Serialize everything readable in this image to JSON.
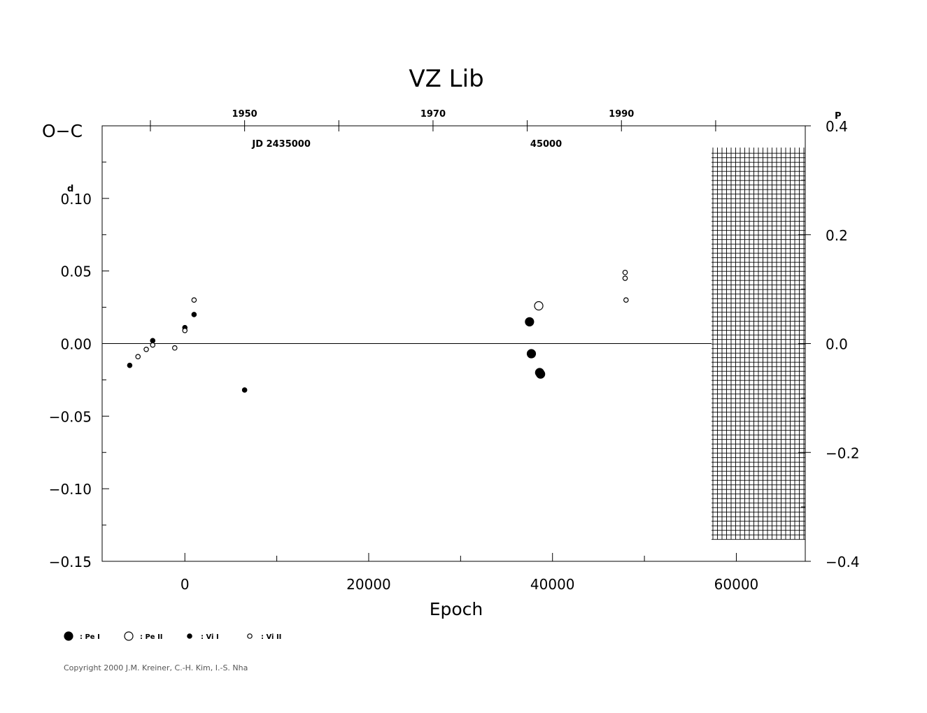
{
  "chart_data": {
    "type": "scatter",
    "title": "VZ  Lib",
    "ylabel": "O−C",
    "xlabel": "Epoch",
    "xlim": [
      -9000,
      67500
    ],
    "ylim": [
      -0.15,
      0.15
    ],
    "x_ticks": [
      0,
      20000,
      40000,
      60000
    ],
    "x_tick_labels": [
      "0",
      "20000",
      "40000",
      "60000"
    ],
    "y_ticks": [
      0.1,
      0.05,
      0.0,
      -0.05,
      -0.1,
      -0.15
    ],
    "y_tick_labels": [
      "0.10",
      "0.05",
      "0.00",
      "−0.05",
      "−0.10",
      "−0.15"
    ],
    "y_unit_superscript": "d",
    "right_axis": {
      "ylim": [
        -0.4,
        0.4
      ],
      "ticks": [
        0.4,
        0.2,
        0.0,
        -0.2,
        -0.4
      ],
      "tick_labels": [
        "0.4",
        "0.2",
        "0.0",
        "−0.2",
        "−0.4"
      ],
      "unit_superscript": "P"
    },
    "top_year_axis": {
      "labels": [
        {
          "x": 6500,
          "text": "1950"
        },
        {
          "x": 27000,
          "text": "1970"
        },
        {
          "x": 47500,
          "text": "1990"
        }
      ]
    },
    "top_jd_axis": {
      "labels": [
        {
          "x": 10500,
          "text": "JD  2435000"
        },
        {
          "x": 39300,
          "text": "45000"
        }
      ]
    },
    "zero_line": 0.0,
    "hatched_region": {
      "x_from": 57300,
      "x_to": 67500,
      "y_from": -0.135,
      "y_to": 0.135
    },
    "series": [
      {
        "name": "Pe I",
        "symbol": "filled-large",
        "points": [
          [
            37500,
            0.015
          ],
          [
            37700,
            -0.007
          ],
          [
            38600,
            -0.02
          ],
          [
            38700,
            -0.021
          ]
        ]
      },
      {
        "name": "Pe II",
        "symbol": "open-large",
        "points": [
          [
            38500,
            0.026
          ]
        ]
      },
      {
        "name": "Vi I",
        "symbol": "filled-small",
        "points": [
          [
            -6000,
            -0.015
          ],
          [
            -3500,
            0.002
          ],
          [
            0,
            0.011
          ],
          [
            1000,
            0.02
          ],
          [
            6500,
            -0.032
          ]
        ]
      },
      {
        "name": "Vi II",
        "symbol": "open-small",
        "points": [
          [
            -5100,
            -0.009
          ],
          [
            -4200,
            -0.004
          ],
          [
            -3500,
            -0.001
          ],
          [
            -1100,
            -0.003
          ],
          [
            0,
            0.009
          ],
          [
            1000,
            0.03
          ],
          [
            47900,
            0.045
          ],
          [
            47900,
            0.049
          ],
          [
            48000,
            0.03
          ]
        ]
      }
    ],
    "legend": [
      {
        "symbol": "filled-large",
        "label": ": Pe  I"
      },
      {
        "symbol": "open-large",
        "label": ": Pe  II"
      },
      {
        "symbol": "filled-small",
        "label": ": Vi  I"
      },
      {
        "symbol": "open-small",
        "label": ": Vi  II"
      }
    ]
  },
  "copyright": "Copyright 2000 J.M. Kreiner, C.-H. Kim, I.-S. Nha"
}
